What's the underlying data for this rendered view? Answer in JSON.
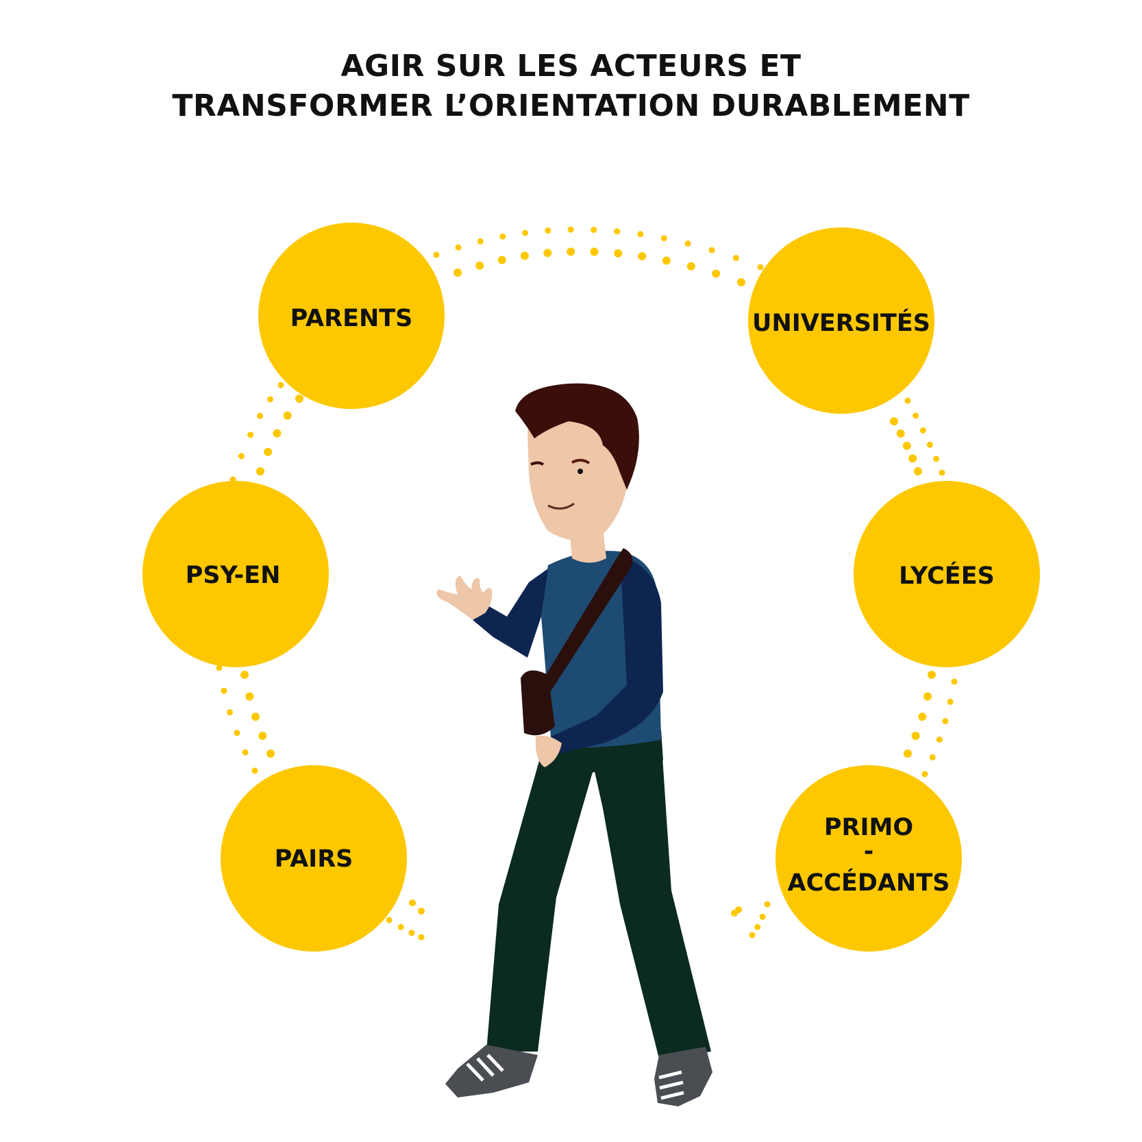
{
  "title": {
    "line1": "AGIR SUR LES ACTEURS ET",
    "line2": "TRANSFORMER L’ORIENTATION DURABLEMENT"
  },
  "nodes": {
    "parents": "PARENTS",
    "psy_en": "PSY-EN",
    "pairs": "PAIRS",
    "universites": "UNIVERSITÉS",
    "lycees": "LYCÉES",
    "primo_line1": "PRIMO",
    "primo_line2": "-",
    "primo_line3": "ACCÉDANTS"
  },
  "colors": {
    "circle": "#FDC800",
    "text": "#111111",
    "shirt": "#1D4B73",
    "sleeve": "#0E2550",
    "pants": "#0B2A20",
    "skin": "#EEC6A8",
    "hair": "#3A0F0A",
    "shoe": "#4A4D52",
    "bag": "#2A0F0C"
  }
}
